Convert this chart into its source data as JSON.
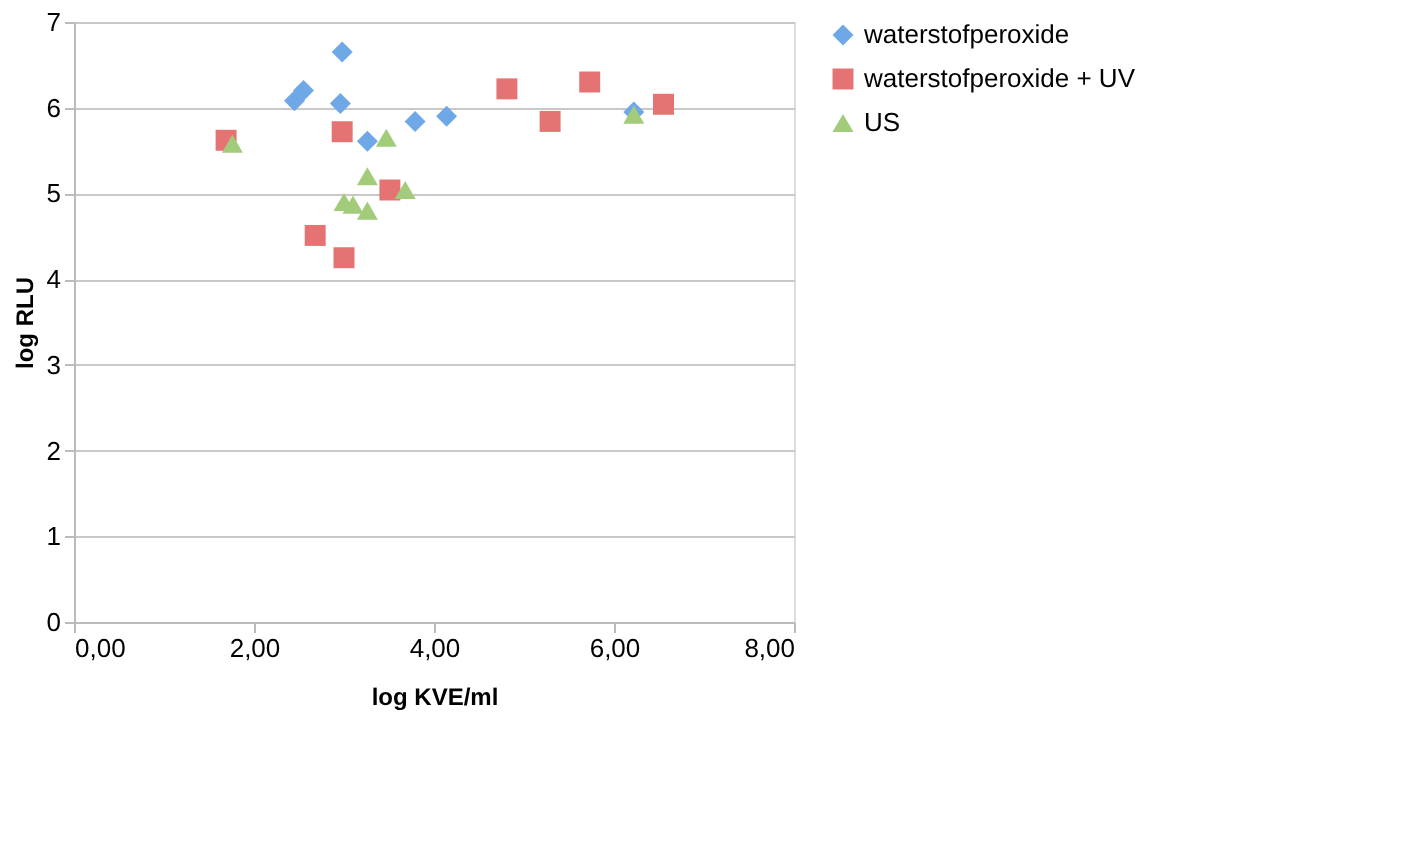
{
  "chart_data": {
    "type": "scatter",
    "xlabel": "log KVE/ml",
    "ylabel": "log RLU",
    "xlim": [
      0,
      8
    ],
    "ylim": [
      0,
      7
    ],
    "xticks": [
      {
        "value": 0,
        "label": "0,00"
      },
      {
        "value": 2,
        "label": "2,00"
      },
      {
        "value": 4,
        "label": "4,00"
      },
      {
        "value": 6,
        "label": "6,00"
      },
      {
        "value": 8,
        "label": "8,00"
      }
    ],
    "yticks": [
      0,
      1,
      2,
      3,
      4,
      5,
      6,
      7
    ],
    "grid": "y",
    "legend": "right",
    "series": [
      {
        "name": "waterstofperoxide",
        "color": "#6fa8e6",
        "marker": "diamond",
        "x": [
          2.45,
          2.55,
          2.98,
          2.96,
          3.26,
          3.79,
          4.14,
          6.22
        ],
        "values": [
          6.08,
          6.2,
          6.65,
          6.05,
          5.61,
          5.84,
          5.9,
          5.95
        ]
      },
      {
        "name": "waterstofperoxide + UV",
        "color": "#e67373",
        "marker": "square",
        "x": [
          1.69,
          2.98,
          2.68,
          3.0,
          3.51,
          4.81,
          5.29,
          5.73,
          6.55
        ],
        "values": [
          5.62,
          5.72,
          4.51,
          4.25,
          5.04,
          6.22,
          5.84,
          6.3,
          6.04
        ]
      },
      {
        "name": "US",
        "color": "#a3cc7a",
        "marker": "triangle",
        "x": [
          1.76,
          3.47,
          3.26,
          3.1,
          3.26,
          3.68,
          3.0,
          6.22
        ],
        "values": [
          5.58,
          5.65,
          5.2,
          4.87,
          4.8,
          5.04,
          4.9,
          5.92
        ]
      }
    ]
  }
}
